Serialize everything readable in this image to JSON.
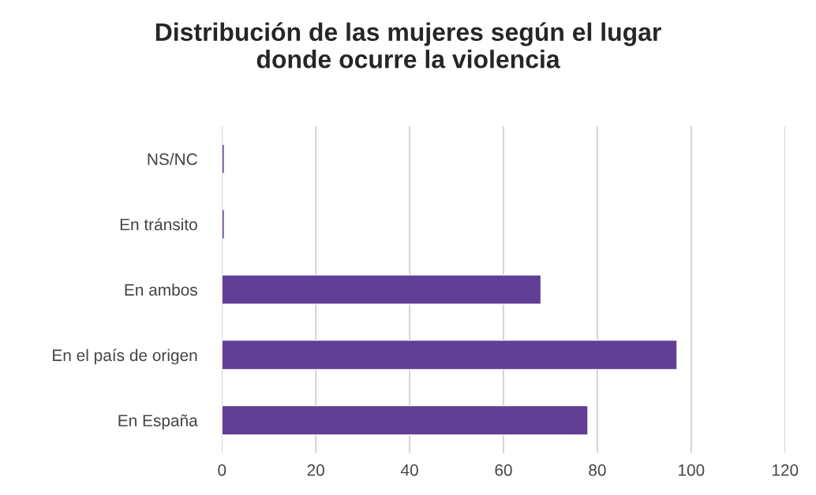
{
  "chart_data": {
    "type": "bar",
    "orientation": "horizontal",
    "title": "Distribución de las mujeres según el lugar\ndonde ocurre la violencia",
    "categories": [
      "NS/NC",
      "En tránsito",
      "En ambos",
      "En el país de origen",
      "En España"
    ],
    "values": [
      0.5,
      0.5,
      68,
      97,
      78
    ],
    "color": "#613f95",
    "xlim": [
      0,
      120
    ],
    "xticks": [
      0,
      20,
      40,
      60,
      80,
      100,
      120
    ],
    "grid": "x",
    "legend": false
  }
}
